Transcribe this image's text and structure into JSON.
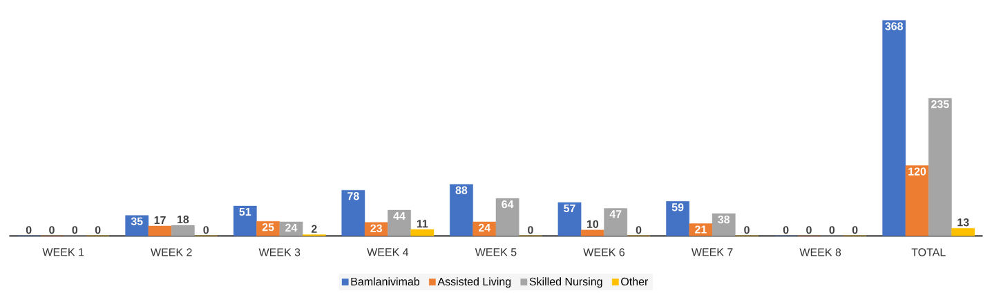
{
  "chart_data": {
    "type": "bar",
    "categories": [
      "WEEK 1",
      "WEEK 2",
      "WEEK 3",
      "WEEK 4",
      "WEEK 5",
      "WEEK 6",
      "WEEK 7",
      "WEEK 8",
      "TOTAL"
    ],
    "series": [
      {
        "name": "Bamlanivimab",
        "color": "#4472c4",
        "values": [
          0,
          35,
          51,
          78,
          88,
          57,
          59,
          0,
          368
        ]
      },
      {
        "name": "Assisted Living",
        "color": "#ed7d31",
        "values": [
          0,
          17,
          25,
          23,
          24,
          10,
          21,
          0,
          120
        ]
      },
      {
        "name": "Skilled Nursing",
        "color": "#a5a5a5",
        "values": [
          0,
          18,
          24,
          44,
          64,
          47,
          38,
          0,
          235
        ]
      },
      {
        "name": "Other",
        "color": "#ffc000",
        "values": [
          0,
          0,
          2,
          11,
          0,
          0,
          0,
          0,
          13
        ]
      }
    ],
    "legend": "bottom",
    "data_labels": true
  }
}
